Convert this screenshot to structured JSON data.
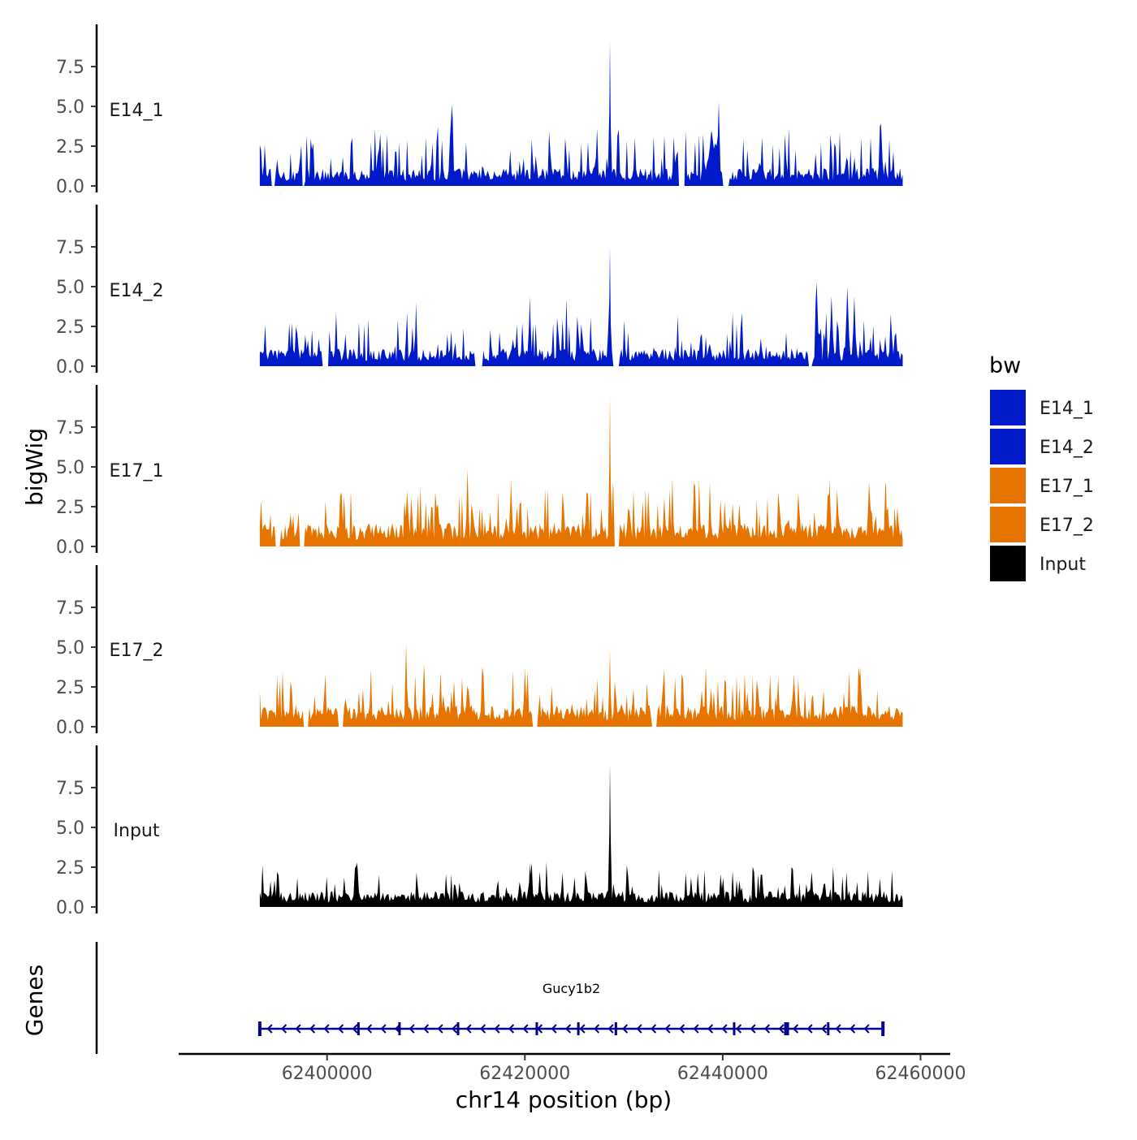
{
  "chart_data": {
    "type": "area",
    "y_axis_title": "bigWig",
    "genes_axis_title": "Genes",
    "x_axis_title": "chr14 position (bp)",
    "x_range": [
      62393200,
      62458200
    ],
    "x_limits": [
      62385000,
      62463000
    ],
    "x_ticks": [
      62400000,
      62420000,
      62440000,
      62460000
    ],
    "x_tick_labels": [
      "62400000",
      "62420000",
      "62440000",
      "62460000"
    ],
    "y_range": [
      0,
      10
    ],
    "y_ticks": [
      0,
      2.5,
      5,
      7.5
    ],
    "y_tick_labels": [
      "0.0",
      "2.5",
      "5.0",
      "7.5"
    ],
    "legend_title": "bw",
    "legend": [
      {
        "label": "E14_1",
        "color": "#0019C9"
      },
      {
        "label": "E14_2",
        "color": "#0019C9"
      },
      {
        "label": "E17_1",
        "color": "#E87400"
      },
      {
        "label": "E17_2",
        "color": "#E87400"
      },
      {
        "label": "Input",
        "color": "#000000"
      }
    ],
    "series": [
      {
        "name": "E14_1",
        "color": "#0019C9",
        "baseline": 0.9,
        "noise": 1.4,
        "peaks": [
          [
            62428600,
            9.1,
            110
          ],
          [
            62412600,
            5.1,
            250
          ],
          [
            62427300,
            3.6,
            160
          ],
          [
            62439600,
            5.3,
            180
          ],
          [
            62438900,
            3.4,
            600
          ],
          [
            62456000,
            3.9,
            250
          ],
          [
            62393700,
            2.6,
            150
          ]
        ],
        "gaps": [
          [
            62394300,
            62394800
          ],
          [
            62397400,
            62397800
          ],
          [
            62435500,
            62436200
          ],
          [
            62440000,
            62440600
          ]
        ]
      },
      {
        "name": "E14_2",
        "color": "#0019C9",
        "baseline": 0.9,
        "noise": 1.3,
        "peaks": [
          [
            62428600,
            7.5,
            110
          ],
          [
            62449500,
            5.3,
            220
          ],
          [
            62452600,
            5.0,
            250
          ],
          [
            62451000,
            4.4,
            220
          ],
          [
            62453300,
            4.4,
            200
          ],
          [
            62420500,
            4.4,
            150
          ],
          [
            62424200,
            4.2,
            150
          ],
          [
            62409000,
            4.0,
            150
          ]
        ],
        "gaps": [
          [
            62399500,
            62400200
          ],
          [
            62415000,
            62415800
          ],
          [
            62428900,
            62429500
          ],
          [
            62448600,
            62449100
          ]
        ]
      },
      {
        "name": "E17_1",
        "color": "#E87400",
        "baseline": 1.2,
        "noise": 1.5,
        "peaks": [
          [
            62428600,
            9.4,
            110
          ],
          [
            62414200,
            4.9,
            180
          ],
          [
            62418600,
            4.2,
            180
          ],
          [
            62428900,
            4.0,
            120
          ],
          [
            62450800,
            4.2,
            180
          ],
          [
            62454800,
            4.1,
            180
          ],
          [
            62408100,
            3.5,
            200
          ],
          [
            62437100,
            4.0,
            150
          ],
          [
            62438700,
            4.0,
            150
          ],
          [
            62456500,
            4.0,
            150
          ]
        ],
        "gaps": [
          [
            62394800,
            62395300
          ],
          [
            62397200,
            62397700
          ],
          [
            62429000,
            62429600
          ]
        ]
      },
      {
        "name": "E17_2",
        "color": "#E87400",
        "baseline": 1.1,
        "noise": 1.5,
        "peaks": [
          [
            62408000,
            5.2,
            150
          ],
          [
            62409800,
            3.9,
            180
          ],
          [
            62428600,
            4.8,
            110
          ],
          [
            62453900,
            3.7,
            200
          ],
          [
            62420000,
            3.7,
            180
          ],
          [
            62447200,
            3.3,
            180
          ]
        ],
        "gaps": [
          [
            62397600,
            62398100
          ],
          [
            62401100,
            62401600
          ],
          [
            62420700,
            62421300
          ],
          [
            62432800,
            62433300
          ]
        ]
      },
      {
        "name": "Input",
        "color": "#000000",
        "baseline": 0.8,
        "noise": 1.0,
        "peaks": [
          [
            62428600,
            9.0,
            110
          ],
          [
            62403000,
            2.8,
            150
          ],
          [
            62420500,
            2.8,
            150
          ],
          [
            62449000,
            2.2,
            180
          ]
        ],
        "gaps": []
      }
    ],
    "gene": {
      "name": "Gucy1b2",
      "start": 62393200,
      "end": 62456200,
      "strand": "-",
      "color": "#00008B"
    }
  }
}
